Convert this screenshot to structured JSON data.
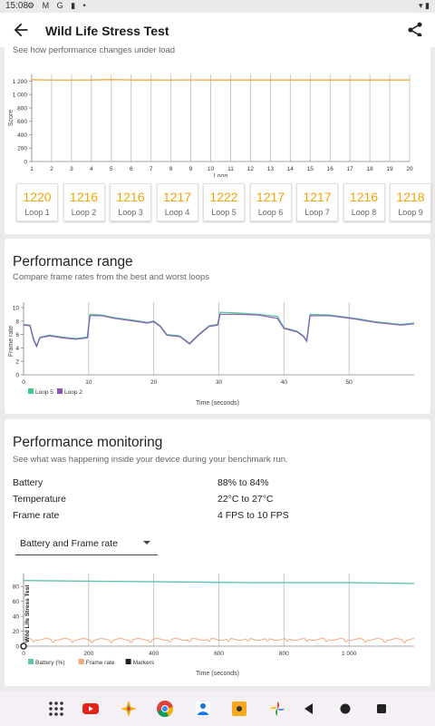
{
  "status": {
    "time": "15:08",
    "icons": "⚙ M G ▮ •"
  },
  "appbar": {
    "title": "Wild Life Stress Test",
    "back_icon": "arrow-back-icon",
    "share_icon": "share-icon"
  },
  "score_card": {
    "subtitle": "See how performance changes under load",
    "loops": [
      {
        "value": "1220",
        "label": "Loop 1"
      },
      {
        "value": "1216",
        "label": "Loop 2"
      },
      {
        "value": "1216",
        "label": "Loop 3"
      },
      {
        "value": "1217",
        "label": "Loop 4"
      },
      {
        "value": "1222",
        "label": "Loop 5"
      },
      {
        "value": "1217",
        "label": "Loop 6"
      },
      {
        "value": "1217",
        "label": "Loop 7"
      },
      {
        "value": "1216",
        "label": "Loop 8"
      },
      {
        "value": "1218",
        "label": "Loop 9"
      }
    ]
  },
  "range_card": {
    "title": "Performance range",
    "subtitle": "Compare frame rates from the best and worst loops"
  },
  "monitor_card": {
    "title": "Performance monitoring",
    "subtitle": "See what was happening inside your device during your benchmark run.",
    "stats": [
      {
        "label": "Battery",
        "value": "88% to 84%"
      },
      {
        "label": "Temperature",
        "value": "22°C to 27°C"
      },
      {
        "label": "Frame rate",
        "value": "4 FPS to 10 FPS"
      }
    ],
    "dropdown_value": "Battery and Frame rate"
  },
  "chart_data": [
    {
      "type": "line",
      "xlabel": "Loop",
      "ylabel": "Score",
      "x": [
        1,
        2,
        3,
        4,
        5,
        6,
        7,
        8,
        9,
        10,
        11,
        12,
        13,
        14,
        15,
        16,
        17,
        18,
        19,
        20
      ],
      "xticks": [
        "1",
        "2",
        "3",
        "4",
        "5",
        "6",
        "7",
        "8",
        "9",
        "10",
        "11",
        "12",
        "13",
        "14",
        "15",
        "16",
        "17",
        "18",
        "19",
        "20"
      ],
      "yticks": [
        "0",
        "200",
        "400",
        "600",
        "800",
        "1 000",
        "1 200"
      ],
      "ylim": [
        0,
        1300
      ],
      "series": [
        {
          "values": [
            1220,
            1216,
            1216,
            1217,
            1222,
            1217,
            1217,
            1216,
            1218,
            1217,
            1217,
            1217,
            1217,
            1217,
            1217,
            1217,
            1217,
            1217,
            1217,
            1217
          ],
          "color": "#f0a030"
        }
      ]
    },
    {
      "type": "line",
      "xlabel": "Time (seconds)",
      "ylabel": "Frame rate",
      "xticks": [
        "0",
        "10",
        "20",
        "30",
        "40",
        "50"
      ],
      "yticks": [
        "0",
        "2",
        "4",
        "6",
        "8",
        "10"
      ],
      "xlim": [
        0,
        60
      ],
      "ylim": [
        0,
        10
      ],
      "series": [
        {
          "name": "Loop 5",
          "color": "#3dc98a",
          "values": [
            [
              0,
              7.5
            ],
            [
              1,
              7.4
            ],
            [
              1.5,
              5.5
            ],
            [
              2,
              4.3
            ],
            [
              2.5,
              5.6
            ],
            [
              4,
              5.9
            ],
            [
              6,
              5.6
            ],
            [
              8,
              5.4
            ],
            [
              9.8,
              5.6
            ],
            [
              10.2,
              9
            ],
            [
              12,
              8.9
            ],
            [
              14,
              8.5
            ],
            [
              17,
              8.1
            ],
            [
              19,
              7.8
            ],
            [
              20,
              8.0
            ],
            [
              21,
              7.3
            ],
            [
              22,
              6.0
            ],
            [
              24,
              5.8
            ],
            [
              25.5,
              4.7
            ],
            [
              27,
              6.1
            ],
            [
              28.5,
              7.3
            ],
            [
              29.8,
              7.5
            ],
            [
              30.2,
              9.3
            ],
            [
              33,
              9.2
            ],
            [
              36,
              9.0
            ],
            [
              39,
              8.7
            ],
            [
              40,
              7.0
            ],
            [
              42,
              6.5
            ],
            [
              43,
              5.8
            ],
            [
              43.5,
              5.1
            ],
            [
              44,
              9.0
            ],
            [
              47,
              8.9
            ],
            [
              51,
              8.4
            ],
            [
              54,
              7.9
            ],
            [
              58,
              7.5
            ],
            [
              60,
              7.7
            ]
          ]
        },
        {
          "name": "Loop 2",
          "color": "#8a4fb8",
          "values": [
            [
              0,
              7.4
            ],
            [
              1,
              7.3
            ],
            [
              1.5,
              5.3
            ],
            [
              2,
              4.2
            ],
            [
              2.5,
              5.5
            ],
            [
              4,
              5.8
            ],
            [
              6,
              5.5
            ],
            [
              8,
              5.3
            ],
            [
              9.8,
              5.5
            ],
            [
              10.2,
              8.8
            ],
            [
              12,
              8.8
            ],
            [
              14,
              8.4
            ],
            [
              17,
              8.0
            ],
            [
              19,
              7.7
            ],
            [
              20,
              7.9
            ],
            [
              21,
              7.2
            ],
            [
              22,
              5.9
            ],
            [
              24,
              5.7
            ],
            [
              25.5,
              4.6
            ],
            [
              27,
              6.0
            ],
            [
              28.5,
              7.2
            ],
            [
              29.8,
              7.4
            ],
            [
              30.2,
              9.0
            ],
            [
              33,
              9.0
            ],
            [
              36,
              8.9
            ],
            [
              39,
              8.4
            ],
            [
              40,
              6.9
            ],
            [
              42,
              6.4
            ],
            [
              43,
              5.7
            ],
            [
              43.5,
              5.0
            ],
            [
              44,
              8.8
            ],
            [
              47,
              8.8
            ],
            [
              51,
              8.3
            ],
            [
              54,
              7.8
            ],
            [
              58,
              7.4
            ],
            [
              60,
              7.6
            ]
          ]
        }
      ]
    },
    {
      "type": "line",
      "xlabel": "Time (seconds)",
      "xticks": [
        "0",
        "200",
        "400",
        "600",
        "800",
        "1 000"
      ],
      "yticks": [
        "0",
        "20",
        "40",
        "60",
        "80"
      ],
      "xlim": [
        0,
        1200
      ],
      "ylim": [
        0,
        90
      ],
      "annotation": "Wild Life Stress Test",
      "series": [
        {
          "name": "Battery (%)",
          "color": "#5ec4b0",
          "values": [
            [
              0,
              88
            ],
            [
              200,
              87
            ],
            [
              500,
              86
            ],
            [
              700,
              85
            ],
            [
              1000,
              85
            ],
            [
              1200,
              84
            ]
          ]
        },
        {
          "name": "Frame rate",
          "color": "#f2a980",
          "values": [
            [
              0,
              9
            ],
            [
              1200,
              9
            ]
          ]
        },
        {
          "name": "Markers",
          "color": "#222222"
        }
      ]
    }
  ]
}
